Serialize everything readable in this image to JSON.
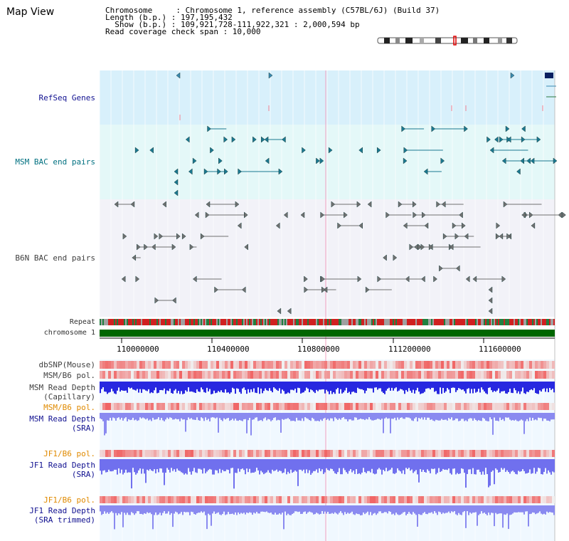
{
  "title": "Map View",
  "info": {
    "line1": "Chromosome     : Chromosome 1, reference assembly (C57BL/6J) (Build 37)",
    "line2": "Length (b.p.) : 197,195,432",
    "line3": "  Show (b.p.) : 109,921,728-111,922,321 : 2,000,594 bp",
    "line4": "Read coverage check span : 10,000"
  },
  "tracks": {
    "refseq": "RefSeq Genes",
    "msm_bac": "MSM BAC end pairs",
    "b6n_bac": "B6N BAC end pairs",
    "repeat": "Repeat",
    "chrom": "chromosome 1",
    "dbsnp": "dbSNP(Mouse)",
    "msm_b6_pol": "MSM/B6 pol.",
    "msm_depth_cap_1": "MSM Read Depth",
    "msm_depth_cap_2": "(Capillary)",
    "msm_b6_pol2": "MSM/B6 pol.",
    "msm_depth_sra_1": "MSM Read Depth",
    "msm_depth_sra_2": "(SRA)",
    "jf1_b6_pol": "JF1/B6 pol.",
    "jf1_depth_sra_1": "JF1 Read Depth",
    "jf1_depth_sra_2": "(SRA)",
    "jf1_b6_pol2": "JF1/B6 pol.",
    "jf1_depth_trim_1": "JF1 Read Depth",
    "jf1_depth_trim_2": "(SRA trimmed)"
  },
  "axis_ticks": [
    "110000000",
    "110400000",
    "110800000",
    "111200000",
    "111600000"
  ],
  "colors": {
    "refseq_bg": "#d8f0fb",
    "msm_bg": "#e4f8f8",
    "b6n_bg": "#f2f2f8",
    "chrom_green": "#006600",
    "depth_blue": "#2020e0",
    "sra_blue": "#8080f0",
    "teal": "#007080"
  }
}
